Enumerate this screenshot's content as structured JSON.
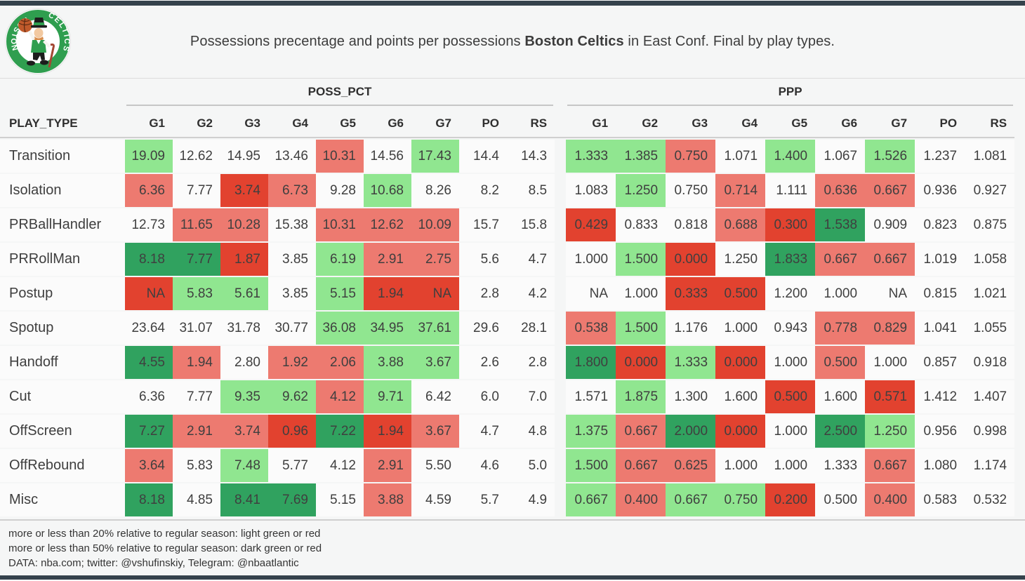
{
  "header": {
    "title_prefix": "Possessions precentage and points per possessions ",
    "title_team": "Boston Celtics",
    "title_suffix": " in East Conf. Final by play types."
  },
  "logo": {
    "top_text": "BOSTON",
    "side_text": "CELTICS"
  },
  "chart_data": {
    "type": "table",
    "title": "Possessions precentage and points per possessions Boston Celtics in East Conf. Final by play types.",
    "row_header": "PLAY_TYPE",
    "columns": [
      "G1",
      "G2",
      "G3",
      "G4",
      "G5",
      "G6",
      "G7",
      "PO",
      "RS"
    ],
    "groups": [
      {
        "label": "POSS_PCT",
        "key": "poss_pct"
      },
      {
        "label": "PPP",
        "key": "ppp"
      }
    ],
    "color_map": {
      "lg": "#90e690",
      "lr": "#ed7a70",
      "dg": "#30a25f",
      "dr": "#e2422f"
    },
    "color_legend": {
      "light_green": "#90e690",
      "light_red": "#ed7a70",
      "dark_green": "#30a25f",
      "dark_red": "#e2422f"
    },
    "rows": [
      {
        "play_type": "Transition",
        "poss_pct": [
          "19.09",
          "12.62",
          "14.95",
          "13.46",
          "10.31",
          "14.56",
          "17.43",
          "14.4",
          "14.3"
        ],
        "poss_pct_colors": [
          "lg",
          "",
          "",
          "",
          "lr",
          "",
          "lg",
          "",
          ""
        ],
        "ppp": [
          "1.333",
          "1.385",
          "0.750",
          "1.071",
          "1.400",
          "1.067",
          "1.526",
          "1.237",
          "1.081"
        ],
        "ppp_colors": [
          "lg",
          "lg",
          "lr",
          "",
          "lg",
          "",
          "lg",
          "",
          ""
        ]
      },
      {
        "play_type": "Isolation",
        "poss_pct": [
          "6.36",
          "7.77",
          "3.74",
          "6.73",
          "9.28",
          "10.68",
          "8.26",
          "8.2",
          "8.5"
        ],
        "poss_pct_colors": [
          "lr",
          "",
          "dr",
          "lr",
          "",
          "lg",
          "",
          "",
          ""
        ],
        "ppp": [
          "1.083",
          "1.250",
          "0.750",
          "0.714",
          "1.111",
          "0.636",
          "0.667",
          "0.936",
          "0.927"
        ],
        "ppp_colors": [
          "",
          "lg",
          "",
          "lr",
          "",
          "lr",
          "lr",
          "",
          ""
        ]
      },
      {
        "play_type": "PRBallHandler",
        "poss_pct": [
          "12.73",
          "11.65",
          "10.28",
          "15.38",
          "10.31",
          "12.62",
          "10.09",
          "15.7",
          "15.8"
        ],
        "poss_pct_colors": [
          "",
          "lr",
          "lr",
          "",
          "lr",
          "lr",
          "lr",
          "",
          ""
        ],
        "ppp": [
          "0.429",
          "0.833",
          "0.818",
          "0.688",
          "0.300",
          "1.538",
          "0.909",
          "0.823",
          "0.875"
        ],
        "ppp_colors": [
          "dr",
          "",
          "",
          "lr",
          "dr",
          "dg",
          "",
          "",
          ""
        ]
      },
      {
        "play_type": "PRRollMan",
        "poss_pct": [
          "8.18",
          "7.77",
          "1.87",
          "3.85",
          "6.19",
          "2.91",
          "2.75",
          "5.6",
          "4.7"
        ],
        "poss_pct_colors": [
          "dg",
          "dg",
          "dr",
          "",
          "lg",
          "lr",
          "lr",
          "",
          ""
        ],
        "ppp": [
          "1.000",
          "1.500",
          "0.000",
          "1.250",
          "1.833",
          "0.667",
          "0.667",
          "1.019",
          "1.058"
        ],
        "ppp_colors": [
          "",
          "lg",
          "dr",
          "",
          "dg",
          "lr",
          "lr",
          "",
          ""
        ]
      },
      {
        "play_type": "Postup",
        "poss_pct": [
          "NA",
          "5.83",
          "5.61",
          "3.85",
          "5.15",
          "1.94",
          "NA",
          "2.8",
          "4.2"
        ],
        "poss_pct_colors": [
          "dr",
          "lg",
          "lg",
          "",
          "lg",
          "dr",
          "dr",
          "",
          ""
        ],
        "ppp": [
          "NA",
          "1.000",
          "0.333",
          "0.500",
          "1.200",
          "1.000",
          "NA",
          "0.815",
          "1.021"
        ],
        "ppp_colors": [
          "",
          "",
          "dr",
          "dr",
          "",
          "",
          "",
          "",
          ""
        ]
      },
      {
        "play_type": "Spotup",
        "poss_pct": [
          "23.64",
          "31.07",
          "31.78",
          "30.77",
          "36.08",
          "34.95",
          "37.61",
          "29.6",
          "28.1"
        ],
        "poss_pct_colors": [
          "",
          "",
          "",
          "",
          "lg",
          "lg",
          "lg",
          "",
          ""
        ],
        "ppp": [
          "0.538",
          "1.500",
          "1.176",
          "1.000",
          "0.943",
          "0.778",
          "0.829",
          "1.041",
          "1.055"
        ],
        "ppp_colors": [
          "lr",
          "lg",
          "",
          "",
          "",
          "lr",
          "lr",
          "",
          ""
        ]
      },
      {
        "play_type": "Handoff",
        "poss_pct": [
          "4.55",
          "1.94",
          "2.80",
          "1.92",
          "2.06",
          "3.88",
          "3.67",
          "2.6",
          "2.8"
        ],
        "poss_pct_colors": [
          "dg",
          "lr",
          "",
          "lr",
          "lr",
          "lg",
          "lg",
          "",
          ""
        ],
        "ppp": [
          "1.800",
          "0.000",
          "1.333",
          "0.000",
          "1.000",
          "0.500",
          "1.000",
          "0.857",
          "0.918"
        ],
        "ppp_colors": [
          "dg",
          "dr",
          "lg",
          "dr",
          "",
          "lr",
          "",
          "",
          ""
        ]
      },
      {
        "play_type": "Cut",
        "poss_pct": [
          "6.36",
          "7.77",
          "9.35",
          "9.62",
          "4.12",
          "9.71",
          "6.42",
          "6.0",
          "7.0"
        ],
        "poss_pct_colors": [
          "",
          "",
          "lg",
          "lg",
          "lr",
          "lg",
          "",
          "",
          ""
        ],
        "ppp": [
          "1.571",
          "1.875",
          "1.300",
          "1.600",
          "0.500",
          "1.600",
          "0.571",
          "1.412",
          "1.407"
        ],
        "ppp_colors": [
          "",
          "lg",
          "",
          "",
          "dr",
          "",
          "dr",
          "",
          ""
        ]
      },
      {
        "play_type": "OffScreen",
        "poss_pct": [
          "7.27",
          "2.91",
          "3.74",
          "0.96",
          "7.22",
          "1.94",
          "3.67",
          "4.7",
          "4.8"
        ],
        "poss_pct_colors": [
          "dg",
          "lr",
          "lr",
          "dr",
          "dg",
          "dr",
          "lr",
          "",
          ""
        ],
        "ppp": [
          "1.375",
          "0.667",
          "2.000",
          "0.000",
          "1.000",
          "2.500",
          "1.250",
          "0.956",
          "0.998"
        ],
        "ppp_colors": [
          "lg",
          "lr",
          "dg",
          "dr",
          "",
          "dg",
          "lg",
          "",
          ""
        ]
      },
      {
        "play_type": "OffRebound",
        "poss_pct": [
          "3.64",
          "5.83",
          "7.48",
          "5.77",
          "4.12",
          "2.91",
          "5.50",
          "4.6",
          "5.0"
        ],
        "poss_pct_colors": [
          "lr",
          "",
          "lg",
          "",
          "",
          "lr",
          "",
          "",
          ""
        ],
        "ppp": [
          "1.500",
          "0.667",
          "0.625",
          "1.000",
          "1.000",
          "1.333",
          "0.667",
          "1.080",
          "1.174"
        ],
        "ppp_colors": [
          "lg",
          "lr",
          "lr",
          "",
          "",
          "",
          "lr",
          "",
          ""
        ]
      },
      {
        "play_type": "Misc",
        "poss_pct": [
          "8.18",
          "4.85",
          "8.41",
          "7.69",
          "5.15",
          "3.88",
          "4.59",
          "5.7",
          "4.9"
        ],
        "poss_pct_colors": [
          "dg",
          "",
          "dg",
          "dg",
          "",
          "lr",
          "",
          "",
          ""
        ],
        "ppp": [
          "0.667",
          "0.400",
          "0.667",
          "0.750",
          "0.200",
          "0.500",
          "0.400",
          "0.583",
          "0.532"
        ],
        "ppp_colors": [
          "lg",
          "lr",
          "lg",
          "lg",
          "dr",
          "",
          "lr",
          "",
          ""
        ]
      }
    ],
    "legend_notes": [
      "more or less than 20% relative to regular season: light green or red",
      "more or less than 50% relative to regular season: dark green or red",
      "DATA: nba.com; twitter: @vshufinskiy, Telegram: @nbaatlantic"
    ]
  }
}
